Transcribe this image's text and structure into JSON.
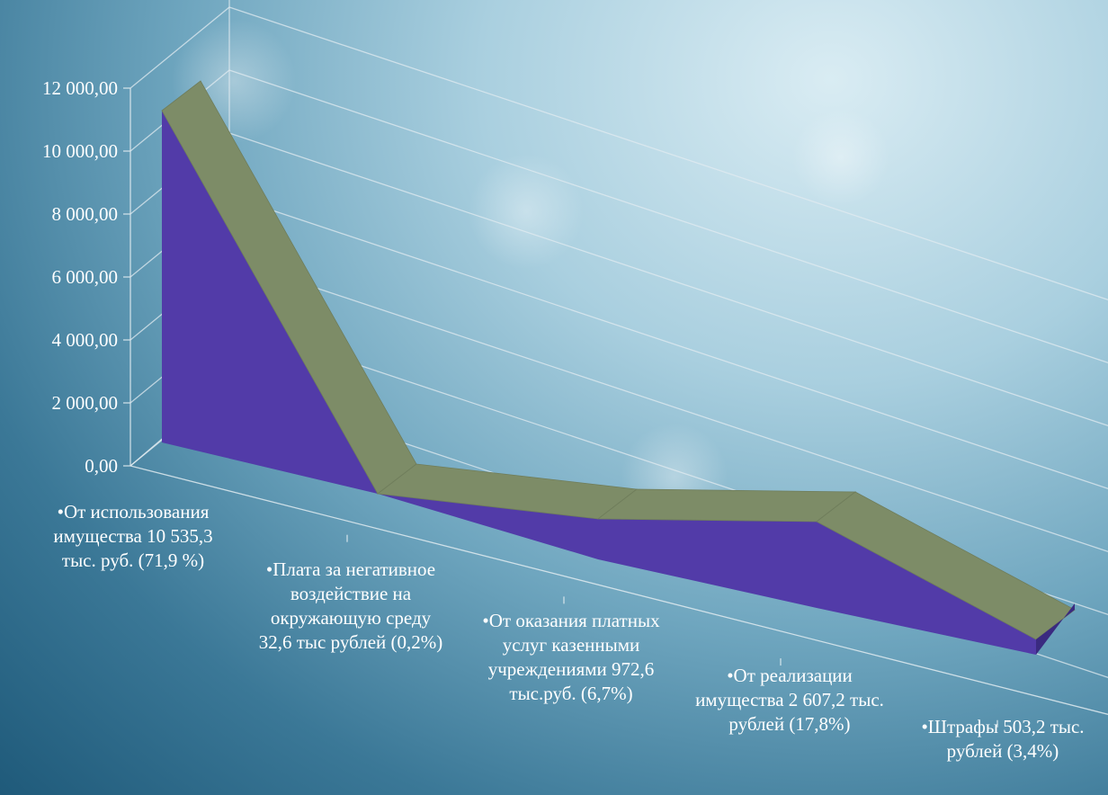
{
  "chart_data": {
    "type": "area",
    "style": "3d-ribbon",
    "title": "",
    "xlabel": "",
    "ylabel": "",
    "ylim": [
      0,
      12000
    ],
    "yticks": [
      "0,00",
      "2 000,00",
      "4 000,00",
      "6 000,00",
      "8 000,00",
      "10 000,00",
      "12 000,00"
    ],
    "grid": true,
    "legend": "none",
    "categories": [
      "•От использования имущества   10 535,3 тыс. руб. (71,9 %)",
      "•Плата за негативное воздействие на окружающую среду 32,6 тыс рублей (0,2%)",
      "•От оказания платных услуг казенными учреждениями 972,6 тыс.руб. (6,7%)",
      "•От реализации имущества 2 607,2 тыс. рублей (17,8%)",
      "•Штрафы 503,2 тыс. рублей (3,4%)"
    ],
    "series": [
      {
        "values": [
          10535.3,
          32.6,
          972.6,
          2607.2,
          503.2
        ]
      }
    ],
    "colors": {
      "front": "#523ba8",
      "top": "#7d8c67",
      "side": "#3a2a80"
    }
  }
}
